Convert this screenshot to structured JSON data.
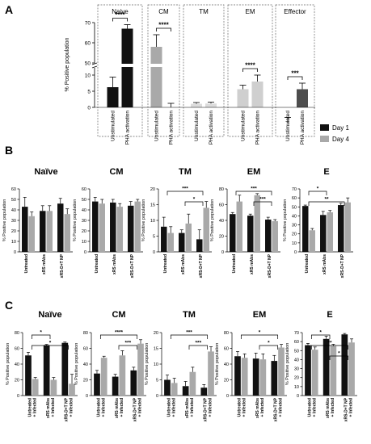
{
  "panel_labels": [
    "A",
    "B",
    "C"
  ],
  "legend": {
    "entries": [
      {
        "label": "Day 1",
        "color": "#111111"
      },
      {
        "label": "Day 4",
        "color": "#a9a9a9"
      }
    ]
  },
  "chart_data": [
    {
      "id": "A",
      "type": "bar",
      "ylabel": "% Positive population",
      "yticks": [
        "0",
        "5",
        "10",
        "50",
        "60",
        "70"
      ],
      "categories": [
        "Unstimulated",
        "PHA activation"
      ],
      "subsets": [
        {
          "name": "Naive",
          "values": [
            38,
            67
          ],
          "errors": [
            5,
            2
          ],
          "colors": [
            "#111111",
            "#111111"
          ],
          "sig": "****"
        },
        {
          "name": "CM",
          "values": [
            58,
            28
          ],
          "errors": [
            6,
            2
          ],
          "colors": [
            "#a9a9a9",
            "#a9a9a9"
          ],
          "sig": "****"
        },
        {
          "name": "TM",
          "values": [
            1.1,
            1.2
          ],
          "errors": [
            0.4,
            0.4
          ],
          "colors": [
            "#dcdcdc",
            "#dcdcdc"
          ],
          "sig": ""
        },
        {
          "name": "EM",
          "values": [
            37,
            8
          ],
          "errors": [
            2,
            2
          ],
          "colors": [
            "#cfcfcf",
            "#cfcfcf"
          ],
          "sig": "****"
        },
        {
          "name": "Effector",
          "values": [
            20,
            37
          ],
          "errors": [
            3,
            3
          ],
          "colors": [
            "#4d4d4d",
            "#4d4d4d"
          ],
          "sig": "***"
        }
      ]
    },
    {
      "id": "B",
      "type": "bar",
      "ylabel": "% Positive population",
      "categories": [
        "Untreated",
        "xRS mAbs",
        "xRS-D+T NP"
      ],
      "series_names": [
        "Day 1",
        "Day 4"
      ],
      "panels": [
        {
          "title": "Naïve",
          "ylim": [
            0,
            60
          ],
          "yticks": [
            "0",
            "10",
            "20",
            "30",
            "40",
            "50",
            "60"
          ],
          "day1": [
            43,
            39,
            46
          ],
          "day4": [
            34,
            39,
            36
          ],
          "err1": [
            9,
            5,
            5
          ],
          "err4": [
            4,
            5,
            5
          ],
          "sig": []
        },
        {
          "title": "CM",
          "ylim": [
            0,
            60
          ],
          "yticks": [
            "0",
            "10",
            "20",
            "30",
            "40",
            "50",
            "60"
          ],
          "day1": [
            48,
            47,
            44
          ],
          "day4": [
            46,
            43,
            48
          ],
          "err1": [
            4,
            3,
            4
          ],
          "err4": [
            4,
            3,
            2
          ],
          "sig": []
        },
        {
          "title": "TM",
          "ylim": [
            0,
            20
          ],
          "yticks": [
            "0",
            "5",
            "10",
            "15",
            "20"
          ],
          "day1": [
            8,
            6,
            4
          ],
          "day4": [
            6,
            9,
            14
          ],
          "err1": [
            3,
            1,
            3
          ],
          "err4": [
            2,
            3,
            2
          ],
          "sig": [
            {
              "from": 0,
              "to": 2,
              "label": "***"
            },
            {
              "from": 1,
              "to": 2,
              "label": "*"
            }
          ]
        },
        {
          "title": "EM",
          "ylim": [
            0,
            80
          ],
          "yticks": [
            "0",
            "20",
            "40",
            "60",
            "80"
          ],
          "day1": [
            48,
            46,
            41
          ],
          "day4": [
            64,
            72,
            39
          ],
          "err1": [
            2,
            2,
            3
          ],
          "err4": [
            8,
            2,
            2
          ],
          "sig": [
            {
              "from": 0,
              "to": 2,
              "label": "***"
            },
            {
              "from": 1,
              "to": 2,
              "label": "***"
            }
          ]
        },
        {
          "title": "E",
          "ylim": [
            0,
            70
          ],
          "yticks": [
            "0",
            "10",
            "20",
            "30",
            "40",
            "50",
            "60",
            "70"
          ],
          "day1": [
            51,
            41,
            52
          ],
          "day4": [
            24,
            44,
            55
          ],
          "err1": [
            1,
            4,
            2
          ],
          "err4": [
            2,
            2,
            5
          ],
          "sig": [
            {
              "from": 0,
              "to": 1,
              "label": "*"
            },
            {
              "from": 0,
              "to": 2,
              "label": "**"
            }
          ]
        }
      ]
    },
    {
      "id": "C",
      "type": "bar",
      "ylabel": "% Positive population",
      "categories": [
        "Untreated + Infected",
        "xRS mAbs + Infected",
        "xRS-D+T NP + Infected"
      ],
      "series_names": [
        "Day 1",
        "Day 4"
      ],
      "panels": [
        {
          "title": "Naïve",
          "ylim": [
            0,
            80
          ],
          "yticks": [
            "0",
            "20",
            "40",
            "60",
            "80"
          ],
          "day1": [
            51,
            64,
            67
          ],
          "day4": [
            21,
            20,
            15
          ],
          "err1": [
            4,
            1,
            1
          ],
          "err4": [
            2,
            3,
            12
          ],
          "sig": [
            {
              "from": 0,
              "to": 1,
              "label": "*"
            },
            {
              "from": 0,
              "to": 2,
              "label": "*"
            }
          ]
        },
        {
          "title": "CM",
          "ylim": [
            0,
            80
          ],
          "yticks": [
            "0",
            "20",
            "40",
            "60",
            "80"
          ],
          "day1": [
            28,
            24,
            32
          ],
          "day4": [
            48,
            51,
            66
          ],
          "err1": [
            4,
            3,
            4
          ],
          "err4": [
            2,
            6,
            5
          ],
          "sig": [
            {
              "from": 0,
              "to": 2,
              "label": "****"
            },
            {
              "from": 1,
              "to": 2,
              "label": "***"
            }
          ]
        },
        {
          "title": "TM",
          "ylim": [
            0,
            20
          ],
          "yticks": [
            "0",
            "5",
            "10",
            "15",
            "20"
          ],
          "day1": [
            5,
            3,
            2.5
          ],
          "day4": [
            4,
            7.5,
            14
          ],
          "err1": [
            1.5,
            1.5,
            1
          ],
          "err4": [
            1.5,
            1.5,
            1.5
          ],
          "sig": [
            {
              "from": 0,
              "to": 2,
              "label": "***"
            },
            {
              "from": 1,
              "to": 2,
              "label": "***"
            }
          ]
        },
        {
          "title": "EM",
          "ylim": [
            0,
            80
          ],
          "yticks": [
            "0",
            "20",
            "40",
            "60",
            "80"
          ],
          "day1": [
            50,
            47,
            44
          ],
          "day4": [
            48,
            46,
            61
          ],
          "err1": [
            6,
            7,
            7
          ],
          "err4": [
            5,
            7,
            4
          ],
          "sig": [
            {
              "from": 0,
              "to": 2,
              "label": "*"
            },
            {
              "from": 1,
              "to": 2,
              "label": "*"
            }
          ]
        },
        {
          "title": "E",
          "ylim": [
            0,
            70
          ],
          "yticks": [
            "0",
            "10",
            "20",
            "30",
            "40",
            "50",
            "60",
            "70"
          ],
          "day1": [
            56,
            63,
            68
          ],
          "day4": [
            51,
            55,
            59
          ],
          "err1": [
            2,
            3,
            1
          ],
          "err4": [
            3,
            2,
            4
          ],
          "sig": [
            {
              "from": 0,
              "to": 1,
              "label": "*"
            },
            {
              "from": 0,
              "to": 2,
              "label": "**"
            },
            {
              "from": 1,
              "to": 2,
              "label": "*"
            }
          ]
        }
      ]
    }
  ]
}
